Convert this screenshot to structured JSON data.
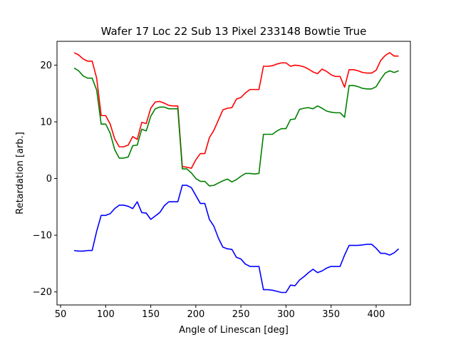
{
  "chart_data": {
    "type": "line",
    "title": "Wafer 17 Loc 22 Sub 13 Pixel 233148 Bowtie True",
    "xlabel": "Angle of Linescan [deg]",
    "ylabel": "Retardation [arb.]",
    "xlim": [
      46,
      438
    ],
    "ylim": [
      -22.3,
      24.2
    ],
    "xticks": [
      50,
      100,
      150,
      200,
      250,
      300,
      350,
      400
    ],
    "yticks": [
      -20,
      -10,
      0,
      10,
      20
    ],
    "grid": false,
    "legend": null,
    "x": [
      65,
      70,
      75,
      80,
      85,
      90,
      95,
      100,
      105,
      110,
      115,
      120,
      125,
      130,
      135,
      140,
      145,
      150,
      155,
      160,
      165,
      170,
      175,
      180,
      185,
      190,
      195,
      200,
      205,
      210,
      215,
      220,
      225,
      230,
      235,
      240,
      245,
      250,
      255,
      260,
      265,
      270,
      275,
      280,
      285,
      290,
      295,
      300,
      305,
      310,
      315,
      320,
      325,
      330,
      335,
      340,
      345,
      350,
      355,
      360,
      365,
      370,
      375,
      380,
      385,
      390,
      395,
      400,
      405,
      410,
      415,
      420,
      425
    ],
    "series": [
      {
        "color": "#ff0000",
        "values": [
          22.2,
          21.8,
          21.1,
          20.7,
          20.7,
          17.7,
          11.1,
          11.1,
          9.6,
          7.0,
          5.6,
          5.6,
          5.9,
          7.4,
          6.9,
          9.9,
          9.7,
          12.4,
          13.5,
          13.6,
          13.3,
          12.9,
          12.8,
          12.8,
          2.1,
          2.0,
          1.8,
          3.3,
          4.4,
          4.4,
          7.2,
          8.5,
          10.3,
          12.1,
          12.4,
          12.5,
          14.0,
          14.3,
          15.1,
          15.7,
          15.7,
          15.7,
          19.8,
          19.8,
          19.9,
          20.2,
          20.4,
          20.4,
          19.8,
          20.0,
          19.9,
          19.7,
          19.3,
          18.8,
          18.5,
          19.3,
          18.9,
          18.3,
          18.0,
          18.0,
          16.1,
          19.2,
          19.2,
          19.0,
          18.7,
          18.6,
          18.6,
          19.1,
          20.8,
          21.7,
          22.2,
          21.6,
          21.6
        ]
      },
      {
        "color": "#008000",
        "values": [
          19.5,
          19.0,
          18.1,
          17.7,
          17.7,
          15.6,
          9.6,
          9.6,
          8.0,
          5.1,
          3.6,
          3.6,
          3.8,
          5.8,
          5.9,
          8.7,
          8.4,
          11.0,
          12.3,
          12.6,
          12.6,
          12.3,
          12.3,
          12.3,
          1.7,
          1.7,
          1.0,
          0.0,
          -0.5,
          -0.5,
          -1.3,
          -1.2,
          -0.8,
          -0.4,
          -0.1,
          -0.6,
          -0.2,
          0.4,
          0.9,
          0.9,
          0.8,
          0.9,
          7.8,
          7.8,
          7.8,
          8.4,
          8.8,
          8.8,
          10.4,
          10.5,
          12.2,
          12.4,
          12.5,
          12.3,
          12.8,
          12.4,
          11.9,
          11.7,
          11.6,
          11.6,
          10.8,
          16.4,
          16.4,
          16.2,
          15.9,
          15.8,
          15.8,
          16.2,
          17.5,
          18.6,
          19.0,
          18.7,
          19.0
        ]
      },
      {
        "color": "#0000ff",
        "values": [
          -12.7,
          -12.8,
          -12.8,
          -12.7,
          -12.7,
          -9.3,
          -6.5,
          -6.5,
          -6.2,
          -5.3,
          -4.7,
          -4.7,
          -4.9,
          -5.3,
          -4.1,
          -6.0,
          -6.1,
          -7.2,
          -6.6,
          -6.0,
          -4.8,
          -4.1,
          -4.1,
          -4.1,
          -1.2,
          -1.2,
          -1.6,
          -3.0,
          -4.4,
          -4.4,
          -7.2,
          -8.4,
          -10.5,
          -12.1,
          -12.4,
          -12.5,
          -13.9,
          -14.2,
          -15.1,
          -15.5,
          -15.5,
          -15.5,
          -19.6,
          -19.6,
          -19.7,
          -19.9,
          -20.1,
          -20.1,
          -18.8,
          -18.9,
          -17.9,
          -17.3,
          -16.6,
          -16.0,
          -16.6,
          -16.3,
          -15.8,
          -15.5,
          -15.5,
          -15.5,
          -13.5,
          -11.8,
          -11.8,
          -11.8,
          -11.7,
          -11.6,
          -11.6,
          -12.3,
          -13.2,
          -13.2,
          -13.5,
          -13.1,
          -12.4
        ]
      }
    ]
  }
}
